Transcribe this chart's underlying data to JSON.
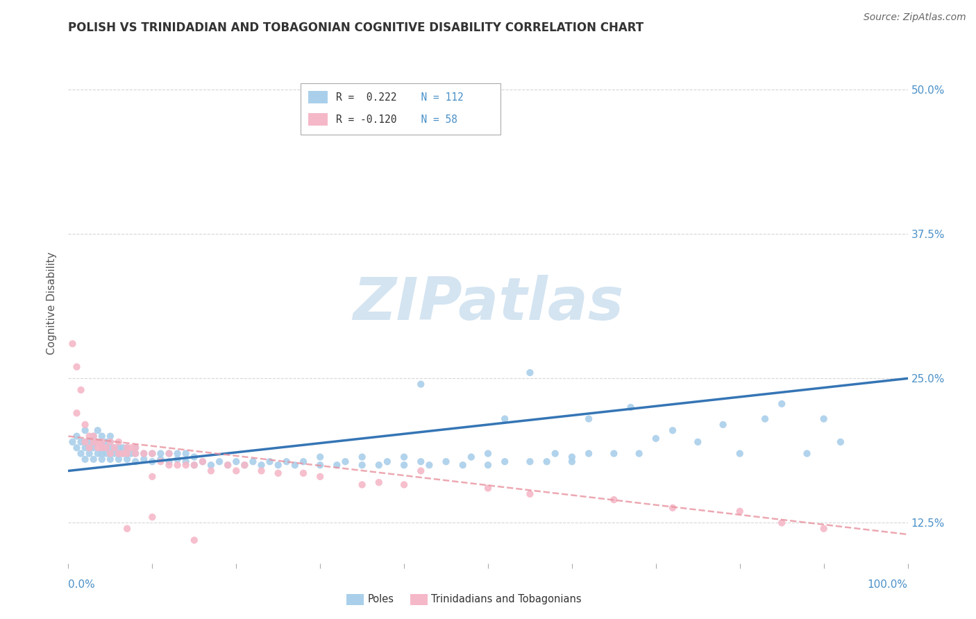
{
  "title": "POLISH VS TRINIDADIAN AND TOBAGONIAN COGNITIVE DISABILITY CORRELATION CHART",
  "source_text": "Source: ZipAtlas.com",
  "ylabel": "Cognitive Disability",
  "xlim": [
    0.0,
    1.0
  ],
  "ylim": [
    0.09,
    0.54
  ],
  "y_tick_vals": [
    0.125,
    0.25,
    0.375,
    0.5
  ],
  "y_tick_labels": [
    "12.5%",
    "25.0%",
    "37.5%",
    "50.0%"
  ],
  "legend_r1": "R =  0.222",
  "legend_n1": "N = 112",
  "legend_r2": "R = -0.120",
  "legend_n2": "N = 58",
  "color_blue": "#aacfea",
  "color_pink": "#f5b8c8",
  "color_blue_line": "#3575b5",
  "color_pink_line": "#e8939f",
  "color_blue_text": "#4a90c8",
  "watermark_color": "#cde0ef",
  "background_color": "#ffffff",
  "grid_color": "#cccccc",
  "blue_trend_y_start": 0.17,
  "blue_trend_y_end": 0.25,
  "pink_trend_y_start": 0.2,
  "pink_trend_y_end": 0.115,
  "title_fontsize": 12,
  "axis_label_fontsize": 11,
  "tick_fontsize": 11,
  "source_fontsize": 10,
  "blue_scatter": [
    [
      0.005,
      0.195
    ],
    [
      0.01,
      0.19
    ],
    [
      0.01,
      0.2
    ],
    [
      0.015,
      0.185
    ],
    [
      0.015,
      0.195
    ],
    [
      0.02,
      0.18
    ],
    [
      0.02,
      0.19
    ],
    [
      0.02,
      0.195
    ],
    [
      0.02,
      0.205
    ],
    [
      0.025,
      0.185
    ],
    [
      0.025,
      0.19
    ],
    [
      0.025,
      0.195
    ],
    [
      0.03,
      0.18
    ],
    [
      0.03,
      0.19
    ],
    [
      0.03,
      0.195
    ],
    [
      0.03,
      0.2
    ],
    [
      0.035,
      0.185
    ],
    [
      0.035,
      0.195
    ],
    [
      0.035,
      0.205
    ],
    [
      0.04,
      0.18
    ],
    [
      0.04,
      0.185
    ],
    [
      0.04,
      0.19
    ],
    [
      0.04,
      0.195
    ],
    [
      0.04,
      0.2
    ],
    [
      0.045,
      0.185
    ],
    [
      0.045,
      0.19
    ],
    [
      0.045,
      0.195
    ],
    [
      0.05,
      0.18
    ],
    [
      0.05,
      0.185
    ],
    [
      0.05,
      0.19
    ],
    [
      0.05,
      0.195
    ],
    [
      0.05,
      0.2
    ],
    [
      0.055,
      0.185
    ],
    [
      0.055,
      0.19
    ],
    [
      0.06,
      0.18
    ],
    [
      0.06,
      0.185
    ],
    [
      0.06,
      0.19
    ],
    [
      0.065,
      0.185
    ],
    [
      0.065,
      0.19
    ],
    [
      0.07,
      0.18
    ],
    [
      0.07,
      0.185
    ],
    [
      0.07,
      0.19
    ],
    [
      0.075,
      0.185
    ],
    [
      0.08,
      0.178
    ],
    [
      0.08,
      0.185
    ],
    [
      0.08,
      0.19
    ],
    [
      0.09,
      0.18
    ],
    [
      0.09,
      0.185
    ],
    [
      0.1,
      0.178
    ],
    [
      0.1,
      0.185
    ],
    [
      0.11,
      0.18
    ],
    [
      0.11,
      0.185
    ],
    [
      0.12,
      0.178
    ],
    [
      0.12,
      0.185
    ],
    [
      0.13,
      0.18
    ],
    [
      0.13,
      0.185
    ],
    [
      0.14,
      0.178
    ],
    [
      0.14,
      0.185
    ],
    [
      0.15,
      0.175
    ],
    [
      0.15,
      0.182
    ],
    [
      0.16,
      0.178
    ],
    [
      0.17,
      0.175
    ],
    [
      0.18,
      0.178
    ],
    [
      0.19,
      0.175
    ],
    [
      0.2,
      0.178
    ],
    [
      0.21,
      0.175
    ],
    [
      0.22,
      0.178
    ],
    [
      0.23,
      0.175
    ],
    [
      0.24,
      0.178
    ],
    [
      0.25,
      0.175
    ],
    [
      0.26,
      0.178
    ],
    [
      0.27,
      0.175
    ],
    [
      0.28,
      0.178
    ],
    [
      0.3,
      0.175
    ],
    [
      0.3,
      0.182
    ],
    [
      0.32,
      0.175
    ],
    [
      0.33,
      0.178
    ],
    [
      0.35,
      0.175
    ],
    [
      0.35,
      0.182
    ],
    [
      0.37,
      0.175
    ],
    [
      0.38,
      0.178
    ],
    [
      0.4,
      0.175
    ],
    [
      0.4,
      0.182
    ],
    [
      0.42,
      0.178
    ],
    [
      0.42,
      0.245
    ],
    [
      0.43,
      0.175
    ],
    [
      0.45,
      0.178
    ],
    [
      0.47,
      0.175
    ],
    [
      0.48,
      0.182
    ],
    [
      0.5,
      0.175
    ],
    [
      0.5,
      0.185
    ],
    [
      0.52,
      0.178
    ],
    [
      0.52,
      0.215
    ],
    [
      0.55,
      0.178
    ],
    [
      0.55,
      0.255
    ],
    [
      0.57,
      0.178
    ],
    [
      0.58,
      0.185
    ],
    [
      0.6,
      0.182
    ],
    [
      0.6,
      0.178
    ],
    [
      0.62,
      0.185
    ],
    [
      0.62,
      0.215
    ],
    [
      0.65,
      0.185
    ],
    [
      0.67,
      0.225
    ],
    [
      0.68,
      0.185
    ],
    [
      0.7,
      0.198
    ],
    [
      0.72,
      0.205
    ],
    [
      0.75,
      0.195
    ],
    [
      0.78,
      0.21
    ],
    [
      0.8,
      0.185
    ],
    [
      0.83,
      0.215
    ],
    [
      0.85,
      0.228
    ],
    [
      0.88,
      0.185
    ],
    [
      0.9,
      0.215
    ],
    [
      0.92,
      0.195
    ]
  ],
  "pink_scatter": [
    [
      0.005,
      0.28
    ],
    [
      0.01,
      0.26
    ],
    [
      0.01,
      0.22
    ],
    [
      0.015,
      0.24
    ],
    [
      0.02,
      0.21
    ],
    [
      0.02,
      0.195
    ],
    [
      0.025,
      0.2
    ],
    [
      0.025,
      0.19
    ],
    [
      0.03,
      0.2
    ],
    [
      0.03,
      0.195
    ],
    [
      0.035,
      0.19
    ],
    [
      0.035,
      0.195
    ],
    [
      0.04,
      0.19
    ],
    [
      0.04,
      0.195
    ],
    [
      0.045,
      0.19
    ],
    [
      0.05,
      0.195
    ],
    [
      0.05,
      0.185
    ],
    [
      0.055,
      0.19
    ],
    [
      0.06,
      0.185
    ],
    [
      0.06,
      0.195
    ],
    [
      0.065,
      0.185
    ],
    [
      0.07,
      0.19
    ],
    [
      0.07,
      0.185
    ],
    [
      0.075,
      0.19
    ],
    [
      0.08,
      0.185
    ],
    [
      0.08,
      0.19
    ],
    [
      0.09,
      0.185
    ],
    [
      0.1,
      0.185
    ],
    [
      0.1,
      0.13
    ],
    [
      0.11,
      0.178
    ],
    [
      0.12,
      0.175
    ],
    [
      0.12,
      0.185
    ],
    [
      0.13,
      0.175
    ],
    [
      0.14,
      0.175
    ],
    [
      0.15,
      0.175
    ],
    [
      0.16,
      0.178
    ],
    [
      0.17,
      0.17
    ],
    [
      0.19,
      0.175
    ],
    [
      0.2,
      0.17
    ],
    [
      0.21,
      0.175
    ],
    [
      0.23,
      0.17
    ],
    [
      0.25,
      0.168
    ],
    [
      0.28,
      0.168
    ],
    [
      0.3,
      0.165
    ],
    [
      0.35,
      0.158
    ],
    [
      0.37,
      0.16
    ],
    [
      0.4,
      0.158
    ],
    [
      0.42,
      0.17
    ],
    [
      0.5,
      0.155
    ],
    [
      0.55,
      0.15
    ],
    [
      0.65,
      0.145
    ],
    [
      0.72,
      0.138
    ],
    [
      0.8,
      0.135
    ],
    [
      0.85,
      0.125
    ],
    [
      0.9,
      0.12
    ],
    [
      0.07,
      0.12
    ],
    [
      0.1,
      0.165
    ],
    [
      0.15,
      0.11
    ]
  ]
}
